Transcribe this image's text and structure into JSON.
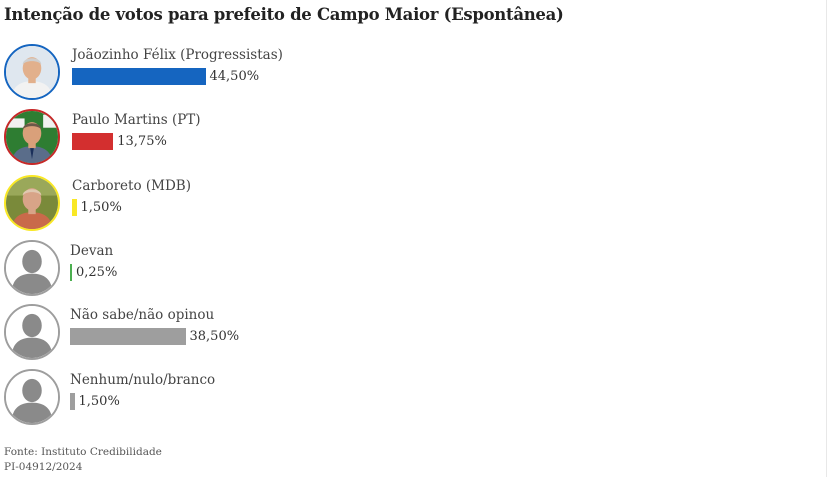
{
  "chart_data": {
    "type": "bar",
    "orientation": "horizontal",
    "title": "Intenção de votos para prefeito de Campo Maior (Espontânea)",
    "categories": [
      "Joãozinho Félix (Progressistas)",
      "Paulo Martins (PT)",
      "Carboreto (MDB)",
      "Devan",
      "Não sabe/não opinou",
      "Nenhum/nulo/branco"
    ],
    "values": [
      44.5,
      13.75,
      1.5,
      0.25,
      38.5,
      1.5
    ],
    "value_labels": [
      "44,50%",
      "13,75%",
      "1,50%",
      "0,25%",
      "38,50%",
      "1,50%"
    ],
    "colors": [
      "#1565c0",
      "#d32f2f",
      "#f9e825",
      "#4caf50",
      "#9e9e9e",
      "#9e9e9e"
    ],
    "avatars": [
      "photo-joaozinho-felix",
      "photo-paulo-martins",
      "photo-carboreto",
      "placeholder-person",
      "placeholder-person",
      "placeholder-person"
    ],
    "avatar_ring_colors": [
      "#1565c0",
      "#c62828",
      "#f9e825",
      "#9e9e9e",
      "#9e9e9e",
      "#9e9e9e"
    ],
    "grid": false,
    "legend": "none"
  },
  "footer": {
    "source": "Fonte: Instituto Credibilidade",
    "registration": "PI-04912/2024"
  }
}
